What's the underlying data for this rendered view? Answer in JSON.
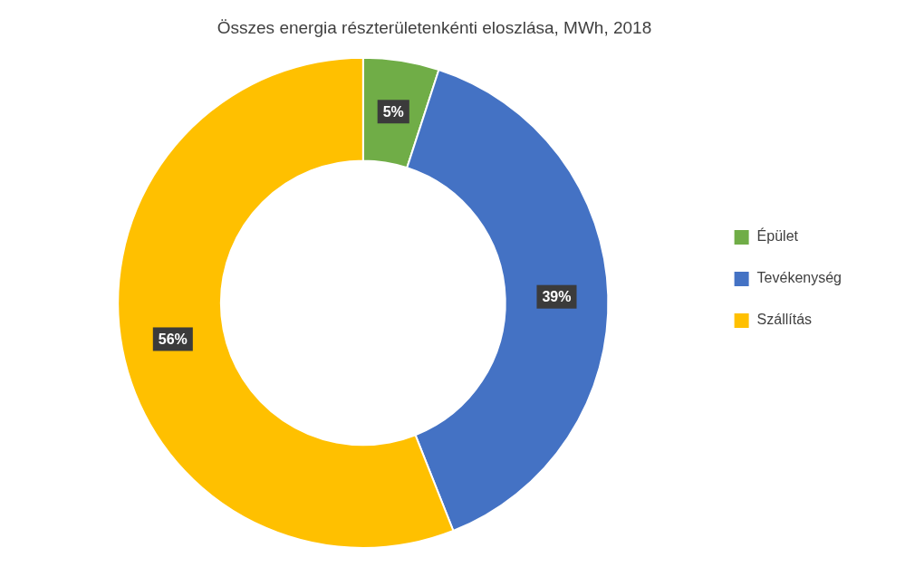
{
  "chart_data": {
    "type": "doughnut",
    "title": "Összes energia részterületenkénti eloszlása, MWh, 2018",
    "categories": [
      "Épület",
      "Tevékenység",
      "Szállítás"
    ],
    "values": [
      5,
      39,
      56
    ],
    "value_labels": [
      "5%",
      "39%",
      "56%"
    ],
    "colors": [
      "#70ad47",
      "#4472c4",
      "#ffc000"
    ],
    "data_labels": true,
    "legend": "right"
  }
}
